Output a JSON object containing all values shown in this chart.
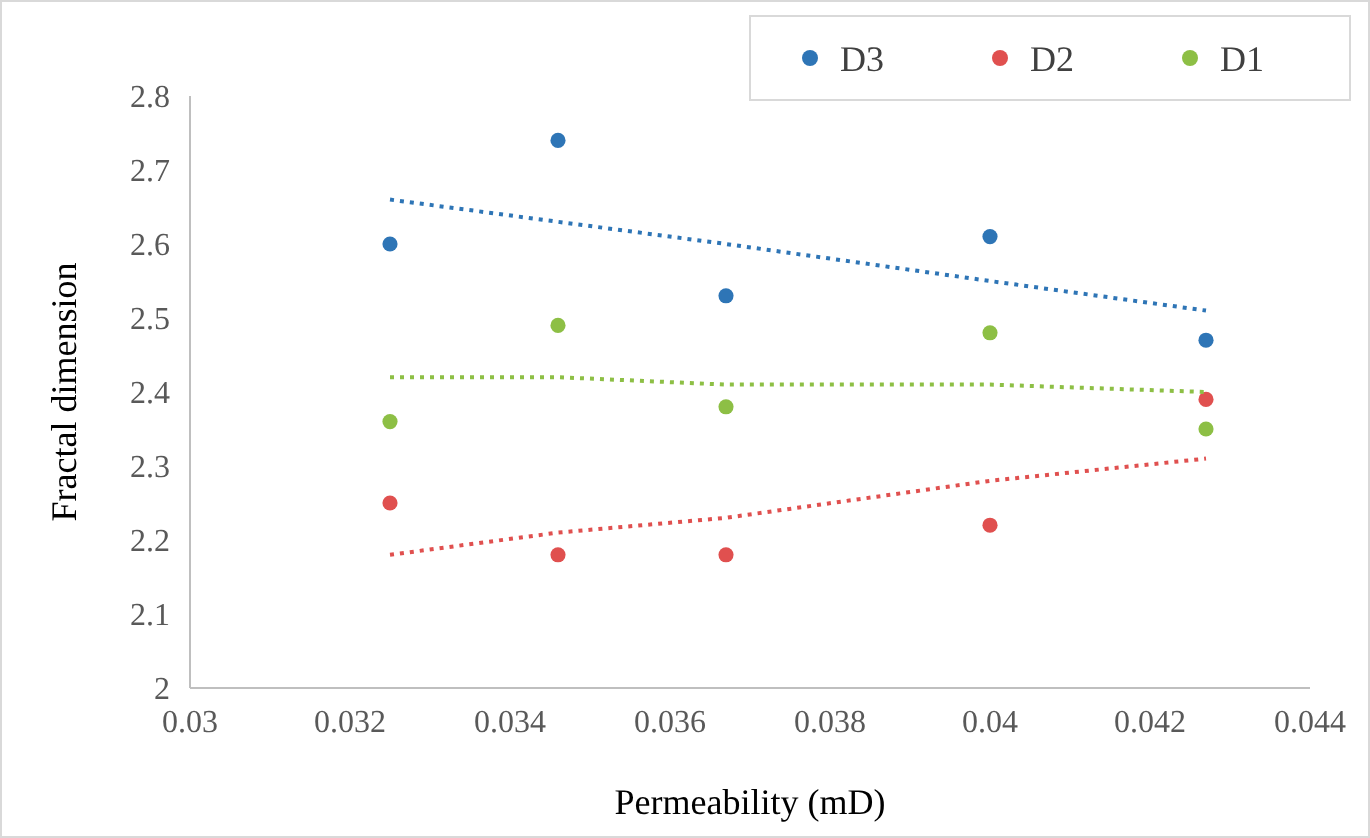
{
  "chart_data": {
    "type": "scatter",
    "xlabel": "Permeability (mD)",
    "ylabel": "Fractal dimension",
    "xlim": [
      0.03,
      0.044
    ],
    "xticks": [
      0.03,
      0.032,
      0.034,
      0.036,
      0.038,
      0.04,
      0.042,
      0.044
    ],
    "ylim": [
      2,
      2.8
    ],
    "yticks": [
      2,
      2.1,
      2.2,
      2.3,
      2.4,
      2.5,
      2.6,
      2.7,
      2.8
    ],
    "grid": false,
    "legend": "top right",
    "marker": "circle",
    "x": [
      0.0325,
      0.0346,
      0.0367,
      0.04,
      0.0427
    ],
    "series": [
      {
        "name": "D3",
        "color": "#2e75b6",
        "values": [
          2.6,
          2.74,
          2.53,
          2.61,
          2.47
        ]
      },
      {
        "name": "D2",
        "color": "#e0504f",
        "values": [
          2.25,
          2.18,
          2.18,
          2.22,
          2.39
        ]
      },
      {
        "name": "D1",
        "color": "#8dbf45",
        "values": [
          2.36,
          2.49,
          2.38,
          2.48,
          2.35
        ]
      },
      {
        "type": "line",
        "color": "#2e75b6",
        "line_style": "dotted",
        "marker": "none",
        "values": [
          2.66,
          2.63,
          2.6,
          2.55,
          2.51
        ]
      },
      {
        "type": "line",
        "color": "#e0504f",
        "line_style": "dotted",
        "marker": "none",
        "values": [
          2.18,
          2.21,
          2.23,
          2.28,
          2.31
        ]
      },
      {
        "type": "line",
        "color": "#8dbf45",
        "line_style": "dotted",
        "marker": "none",
        "values": [
          2.42,
          2.42,
          2.41,
          2.41,
          2.4
        ]
      }
    ]
  }
}
